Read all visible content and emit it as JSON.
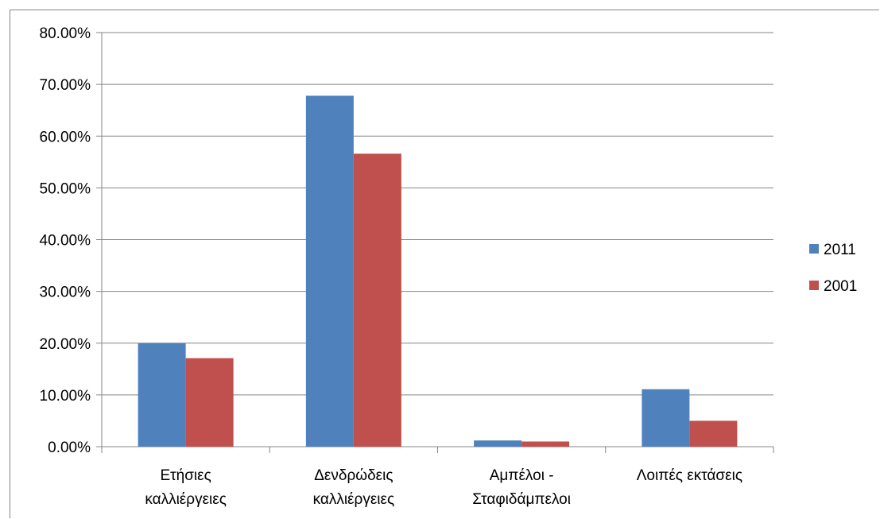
{
  "chart_data": {
    "type": "bar",
    "categories": [
      [
        "Ετήσιες",
        "καλλιέργειες"
      ],
      [
        "Δενδρώδεις",
        "καλλιέργειες"
      ],
      [
        "Αμπέλοι -",
        "Σταφιδάμπελοι"
      ],
      [
        "Λοιπές εκτάσεις"
      ]
    ],
    "series": [
      {
        "name": "2011",
        "color": "#4F81BD",
        "values": [
          20.0,
          67.8,
          1.2,
          11.1
        ]
      },
      {
        "name": "2001",
        "color": "#C0504D",
        "values": [
          17.1,
          56.6,
          1.0,
          5.0
        ]
      }
    ],
    "y_ticks": [
      "0.00%",
      "10.00%",
      "20.00%",
      "30.00%",
      "40.00%",
      "50.00%",
      "60.00%",
      "70.00%",
      "80.00%"
    ],
    "ylim": [
      0,
      80
    ],
    "grid": true,
    "legend_position": "right",
    "title": "",
    "xlabel": "",
    "ylabel": ""
  }
}
